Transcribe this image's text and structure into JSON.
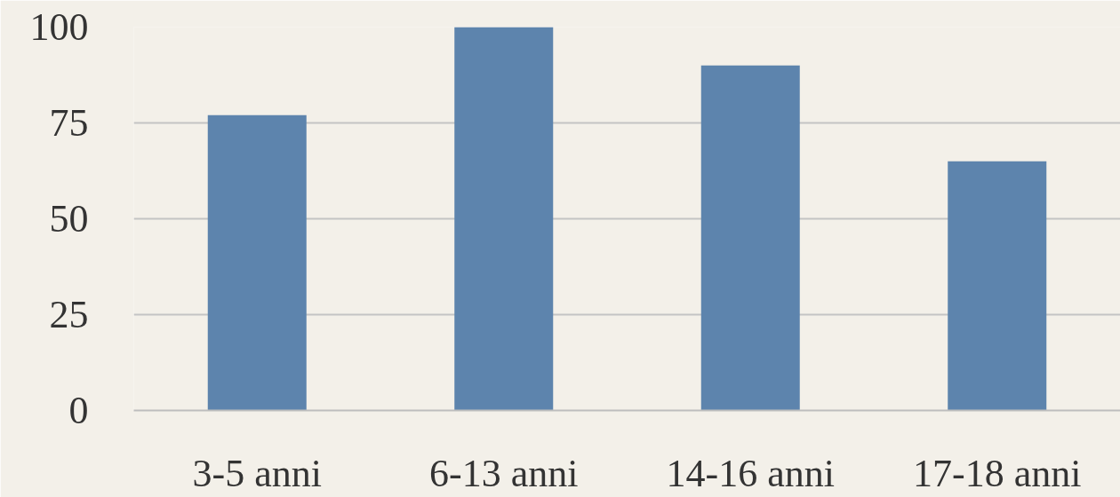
{
  "chart_data": {
    "type": "bar",
    "categories": [
      "3-5 anni",
      "6-13 anni",
      "14-16 anni",
      "17-18 anni"
    ],
    "values": [
      77,
      100,
      90,
      65
    ],
    "color": "#5d84ad",
    "ylim": [
      0,
      100
    ],
    "yticks": [
      0,
      25,
      50,
      75,
      100
    ],
    "grid": "y"
  }
}
